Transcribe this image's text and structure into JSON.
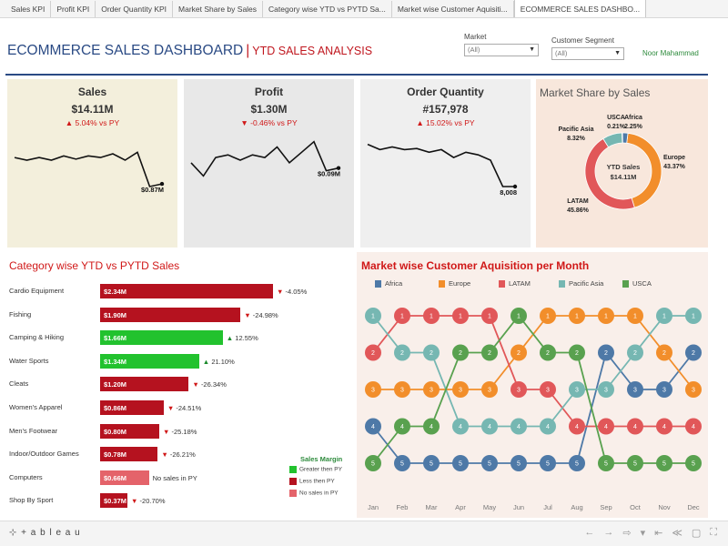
{
  "tabs": [
    {
      "label": "Sales KPI",
      "active": false
    },
    {
      "label": "Profit KPI",
      "active": false
    },
    {
      "label": "Order Quantity KPI",
      "active": false
    },
    {
      "label": "Market Share by Sales",
      "active": false
    },
    {
      "label": "Category wise YTD vs PYTD Sa...",
      "active": false
    },
    {
      "label": "Market wise Customer Aquisiti...",
      "active": false
    },
    {
      "label": "ECOMMERCE SALES DASHBO...",
      "active": true
    }
  ],
  "header": {
    "title": "ECOMMERCE SALES DASHBOARD",
    "separator": "|",
    "subtitle": "YTD SALES ANALYSIS",
    "author": "Noor Mahammad",
    "filters": {
      "market_label": "Market",
      "market_value": "(All)",
      "segment_label": "Customer Segment",
      "segment_value": "(All)"
    }
  },
  "kpis": [
    {
      "id": "sales",
      "title": "Sales",
      "value": "$14.11M",
      "change": "▲ 5.04% vs PY",
      "end_label": "$0.87M",
      "bg": "#f3efdc",
      "trend": [
        0.45,
        0.5,
        0.45,
        0.5,
        0.42,
        0.48,
        0.42,
        0.45,
        0.38,
        0.5,
        0.35,
        1.0,
        0.95
      ]
    },
    {
      "id": "profit",
      "title": "Profit",
      "value": "$1.30M",
      "change": "▼ -0.46% vs PY",
      "end_label": "$0.09M",
      "bg": "#e8e8e8",
      "trend": [
        0.55,
        0.8,
        0.45,
        0.4,
        0.5,
        0.4,
        0.45,
        0.25,
        0.55,
        0.35,
        0.15,
        0.7,
        0.65
      ]
    },
    {
      "id": "orders",
      "title": "Order Quantity",
      "value": "#157,978",
      "change": "▲ 15.02% vs PY",
      "end_label": "8,008",
      "bg": "#efefef",
      "trend": [
        0.2,
        0.3,
        0.25,
        0.3,
        0.28,
        0.35,
        0.3,
        0.45,
        0.35,
        0.4,
        0.5,
        1.0,
        1.0
      ]
    }
  ],
  "market_share": {
    "title": "Market Share by Sales",
    "center_label": "YTD Sales",
    "center_value": "$14.11M",
    "slices": [
      {
        "name": "Europe",
        "pct": 43.37,
        "label": "43.37%",
        "color": "#f28e2b"
      },
      {
        "name": "LATAM",
        "pct": 45.86,
        "label": "45.86%",
        "color": "#e15759"
      },
      {
        "name": "Pacific Asia",
        "pct": 8.32,
        "label": "8.32%",
        "color": "#76b7b2"
      },
      {
        "name": "USCA",
        "pct": 0.21,
        "label": "0.21%",
        "color": "#59a14f"
      },
      {
        "name": "Africa",
        "pct": 2.25,
        "label": "2.25%",
        "color": "#4e79a7"
      }
    ]
  },
  "category": {
    "title": "Category wise YTD vs PYTD Sales",
    "rows": [
      {
        "name": "Cardio Equipment",
        "value_label": "$2.34M",
        "value": 2.34,
        "change": "-4.05%",
        "dir": "down",
        "status": "less"
      },
      {
        "name": "Fishing",
        "value_label": "$1.90M",
        "value": 1.9,
        "change": "-24.98%",
        "dir": "down",
        "status": "less"
      },
      {
        "name": "Camping & Hiking",
        "value_label": "$1.66M",
        "value": 1.66,
        "change": "12.55%",
        "dir": "up",
        "status": "greater"
      },
      {
        "name": "Water Sports",
        "value_label": "$1.34M",
        "value": 1.34,
        "change": "21.10%",
        "dir": "up",
        "status": "greater"
      },
      {
        "name": "Cleats",
        "value_label": "$1.20M",
        "value": 1.2,
        "change": "-26.34%",
        "dir": "down",
        "status": "less"
      },
      {
        "name": "Women's Apparel",
        "value_label": "$0.86M",
        "value": 0.86,
        "change": "-24.51%",
        "dir": "down",
        "status": "less"
      },
      {
        "name": "Men's Footwear",
        "value_label": "$0.80M",
        "value": 0.8,
        "change": "-25.18%",
        "dir": "down",
        "status": "less"
      },
      {
        "name": "Indoor/Outdoor Games",
        "value_label": "$0.78M",
        "value": 0.78,
        "change": "-26.21%",
        "dir": "down",
        "status": "less"
      },
      {
        "name": "Computers",
        "value_label": "$0.66M",
        "value": 0.66,
        "change": "No sales in PY",
        "dir": "none",
        "status": "nosales"
      },
      {
        "name": "Shop By Sport",
        "value_label": "$0.37M",
        "value": 0.37,
        "change": "-20.70%",
        "dir": "down",
        "status": "less"
      }
    ],
    "legend_title": "Sales Margin",
    "legend": [
      {
        "label": "Greater then PY",
        "color": "#22c22e"
      },
      {
        "label": "Less then PY",
        "color": "#b5121f"
      },
      {
        "label": "No sales in PY",
        "color": "#e4636a"
      }
    ],
    "colors": {
      "greater": "#22c22e",
      "less": "#b5121f",
      "nosales": "#e4636a"
    }
  },
  "acquisition": {
    "title": "Market wise Customer Aquisition per Month",
    "months": [
      "Jan",
      "Feb",
      "Mar",
      "Apr",
      "May",
      "Jun",
      "Jul",
      "Aug",
      "Sep",
      "Oct",
      "Nov",
      "Dec"
    ],
    "series": [
      {
        "name": "Africa",
        "color": "#4e79a7",
        "ranks": [
          4,
          5,
          5,
          5,
          5,
          5,
          5,
          5,
          2,
          3,
          3,
          2
        ]
      },
      {
        "name": "Europe",
        "color": "#f28e2b",
        "ranks": [
          3,
          3,
          3,
          3,
          3,
          2,
          1,
          1,
          1,
          1,
          2,
          3
        ]
      },
      {
        "name": "LATAM",
        "color": "#e15759",
        "ranks": [
          2,
          1,
          1,
          1,
          1,
          3,
          3,
          4,
          4,
          4,
          4,
          4
        ]
      },
      {
        "name": "Pacific Asia",
        "color": "#76b7b2",
        "ranks": [
          1,
          2,
          2,
          4,
          4,
          4,
          4,
          3,
          3,
          2,
          1,
          1
        ]
      },
      {
        "name": "USCA",
        "color": "#59a14f",
        "ranks": [
          5,
          4,
          4,
          2,
          2,
          1,
          2,
          2,
          5,
          5,
          5,
          5
        ]
      }
    ]
  },
  "footer": {
    "logo": "⊹ + a b l e a u",
    "tools": [
      "←",
      "→",
      "⇨",
      "▾",
      "⇤",
      "≪",
      "▢",
      "⛶"
    ]
  }
}
